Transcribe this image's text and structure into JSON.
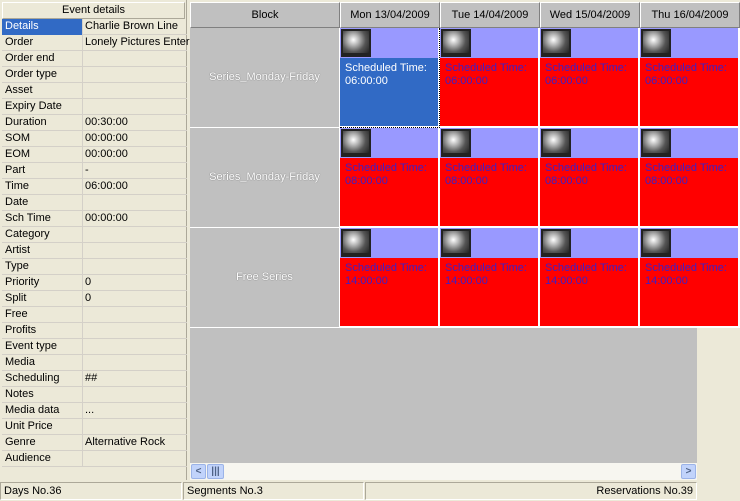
{
  "event_details": {
    "title": "Event details",
    "rows": [
      {
        "label": "Details",
        "value": "Charlie Brown Line"
      },
      {
        "label": "Order",
        "value": "Lonely Pictures Enter"
      },
      {
        "label": "Order end",
        "value": ""
      },
      {
        "label": "Order type",
        "value": ""
      },
      {
        "label": "Asset",
        "value": ""
      },
      {
        "label": "Expiry Date",
        "value": ""
      },
      {
        "label": "Duration",
        "value": "00:30:00"
      },
      {
        "label": "SOM",
        "value": "00:00:00"
      },
      {
        "label": "EOM",
        "value": "00:00:00"
      },
      {
        "label": "Part",
        "value": "-"
      },
      {
        "label": "Time",
        "value": "06:00:00"
      },
      {
        "label": "Date",
        "value": ""
      },
      {
        "label": "Sch Time",
        "value": "00:00:00"
      },
      {
        "label": "Category",
        "value": ""
      },
      {
        "label": "Artist",
        "value": ""
      },
      {
        "label": "Type",
        "value": ""
      },
      {
        "label": "Priority",
        "value": "0"
      },
      {
        "label": "Split",
        "value": "0"
      },
      {
        "label": "Free",
        "value": ""
      },
      {
        "label": "Profits",
        "value": ""
      },
      {
        "label": "Event type",
        "value": ""
      },
      {
        "label": "Media",
        "value": ""
      },
      {
        "label": "Scheduling",
        "value": "##"
      },
      {
        "label": "Notes",
        "value": ""
      },
      {
        "label": "Media data",
        "value": "..."
      },
      {
        "label": "Unit Price",
        "value": ""
      },
      {
        "label": "Genre",
        "value": "Alternative Rock"
      },
      {
        "label": "Audience",
        "value": ""
      }
    ]
  },
  "schedule": {
    "block_header": "Block",
    "days": [
      "Mon 13/04/2009",
      "Tue 14/04/2009",
      "Wed 15/04/2009",
      "Thu 16/04/2009"
    ],
    "cell_label": "Scheduled Time:",
    "blocks": [
      {
        "name": "Series_Monday-Friday",
        "time": "06:00:00"
      },
      {
        "name": "Series_Monday-Friday",
        "time": "08:00:00"
      },
      {
        "name": "Free Series",
        "time": "14:00:00"
      }
    ],
    "icon": "tv-icon",
    "colors": {
      "event": "#ff0000",
      "selected": "#316ac5",
      "icon_bar": "#9999ff",
      "event_text": "#3c1fc8"
    }
  },
  "status": {
    "days": "Days No.36",
    "segments": "Segments No.3",
    "reservations": "Reservations No.39"
  }
}
